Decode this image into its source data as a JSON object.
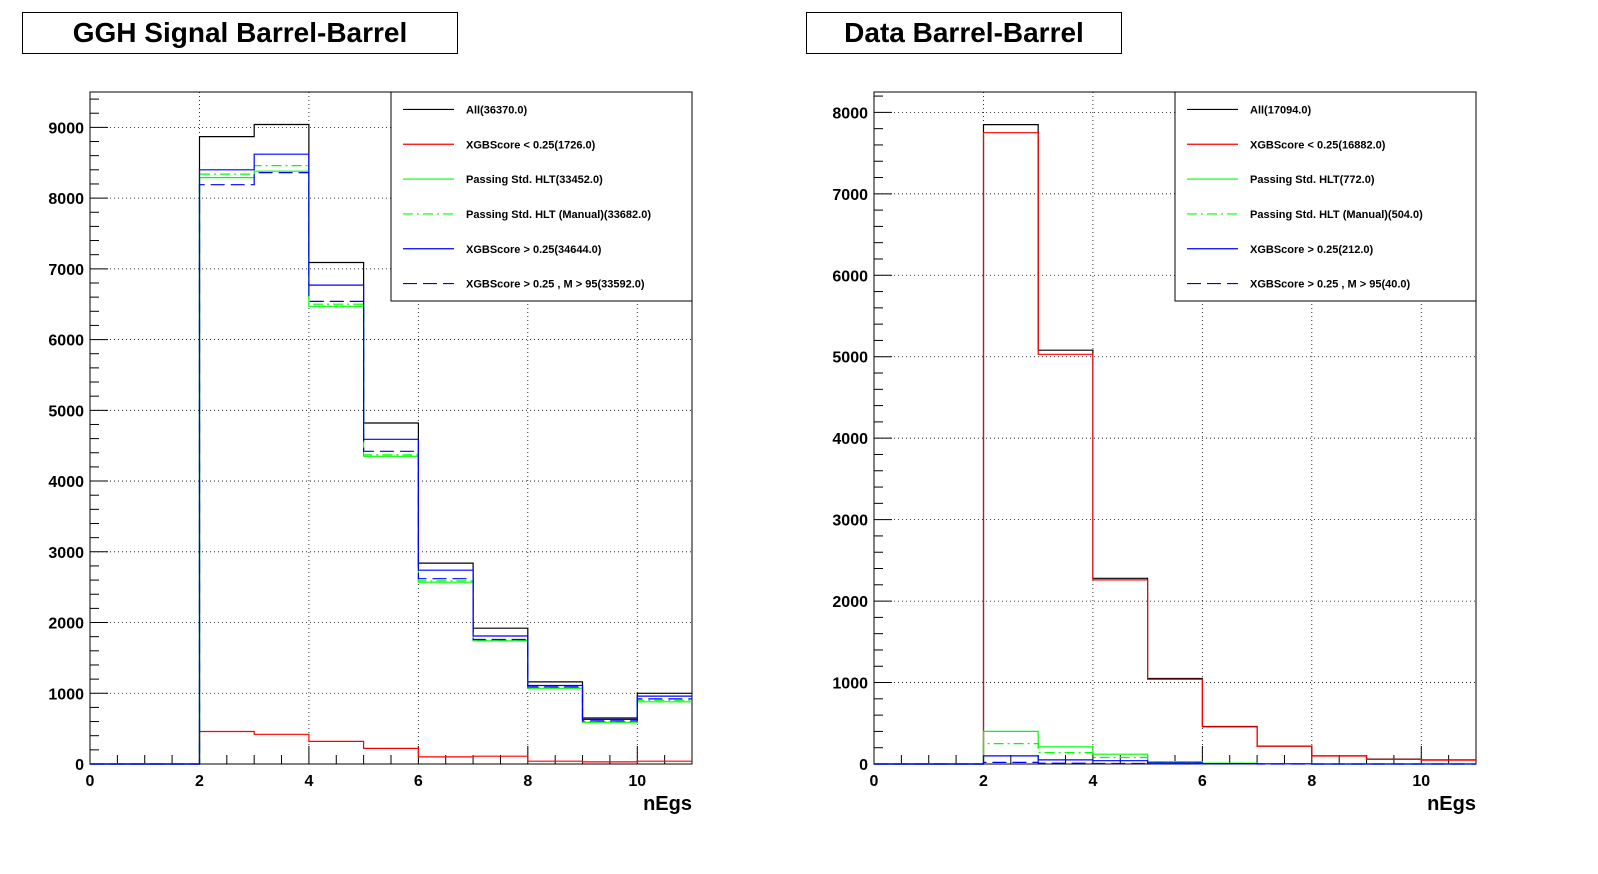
{
  "chart_data": [
    {
      "type": "line",
      "title": "GGH Signal Barrel-Barrel",
      "xlabel": "nEgs",
      "ylabel": "",
      "xlim": [
        0,
        11
      ],
      "ylim": [
        0,
        9500
      ],
      "x_ticks": [
        0,
        2,
        4,
        6,
        8,
        10
      ],
      "y_ticks": [
        0,
        1000,
        2000,
        3000,
        4000,
        5000,
        6000,
        7000,
        8000,
        9000
      ],
      "bin_edges": [
        0,
        1,
        2,
        3,
        4,
        5,
        6,
        7,
        8,
        9,
        10,
        11
      ],
      "grid": true,
      "legend_position": "top-right",
      "series": [
        {
          "name": "All(36370.0)",
          "color": "#000000",
          "dash": "solid",
          "values": [
            0,
            0,
            8870,
            9040,
            7090,
            4820,
            2840,
            1920,
            1160,
            650,
            1000
          ]
        },
        {
          "name": "XGBScore < 0.25(1726.0)",
          "color": "#ff0000",
          "dash": "solid",
          "values": [
            0,
            0,
            460,
            420,
            320,
            220,
            100,
            110,
            40,
            30,
            40
          ]
        },
        {
          "name": "Passing Std. HLT(33452.0)",
          "color": "#00ff00",
          "dash": "solid",
          "values": [
            0,
            0,
            8290,
            8380,
            6470,
            4350,
            2570,
            1740,
            1070,
            590,
            880
          ]
        },
        {
          "name": "Passing Std. HLT (Manual)(33682.0)",
          "color": "#00ff00",
          "dash": "dashdot",
          "values": [
            0,
            0,
            8340,
            8460,
            6500,
            4370,
            2590,
            1750,
            1080,
            600,
            900
          ]
        },
        {
          "name": "XGBScore > 0.25(34644.0)",
          "color": "#0000ff",
          "dash": "solid",
          "values": [
            0,
            0,
            8400,
            8620,
            6770,
            4590,
            2740,
            1810,
            1110,
            630,
            960
          ]
        },
        {
          "name": "XGBScore > 0.25 , M > 95(33592.0)",
          "color": "#0000ff",
          "dash": "dashed",
          "values": [
            0,
            0,
            8190,
            8360,
            6540,
            4420,
            2620,
            1760,
            1090,
            610,
            920
          ]
        }
      ]
    },
    {
      "type": "line",
      "title": "Data Barrel-Barrel",
      "xlabel": "nEgs",
      "ylabel": "",
      "xlim": [
        0,
        11
      ],
      "ylim": [
        0,
        8250
      ],
      "x_ticks": [
        0,
        2,
        4,
        6,
        8,
        10
      ],
      "y_ticks": [
        0,
        1000,
        2000,
        3000,
        4000,
        5000,
        6000,
        7000,
        8000
      ],
      "bin_edges": [
        0,
        1,
        2,
        3,
        4,
        5,
        6,
        7,
        8,
        9,
        10,
        11
      ],
      "grid": true,
      "legend_position": "top-right",
      "series": [
        {
          "name": "All(17094.0)",
          "color": "#000000",
          "dash": "solid",
          "values": [
            0,
            0,
            7850,
            5080,
            2280,
            1050,
            460,
            220,
            100,
            60,
            50
          ]
        },
        {
          "name": "XGBScore < 0.25(16882.0)",
          "color": "#ff0000",
          "dash": "solid",
          "values": [
            0,
            0,
            7750,
            5030,
            2260,
            1040,
            455,
            218,
            98,
            58,
            48
          ]
        },
        {
          "name": "Passing Std. HLT(772.0)",
          "color": "#00ff00",
          "dash": "solid",
          "values": [
            0,
            0,
            400,
            210,
            120,
            30,
            10,
            2,
            0,
            0,
            0
          ]
        },
        {
          "name": "Passing Std. HLT (Manual)(504.0)",
          "color": "#00ff00",
          "dash": "dashdot",
          "values": [
            0,
            0,
            250,
            140,
            80,
            20,
            8,
            2,
            0,
            0,
            0
          ]
        },
        {
          "name": "XGBScore > 0.25(212.0)",
          "color": "#0000ff",
          "dash": "solid",
          "values": [
            0,
            0,
            100,
            50,
            40,
            15,
            5,
            2,
            0,
            0,
            0
          ]
        },
        {
          "name": "XGBScore > 0.25 , M > 95(40.0)",
          "color": "#0000ff",
          "dash": "dashed",
          "values": [
            0,
            0,
            20,
            10,
            6,
            3,
            1,
            0,
            0,
            0,
            0
          ]
        }
      ]
    }
  ]
}
